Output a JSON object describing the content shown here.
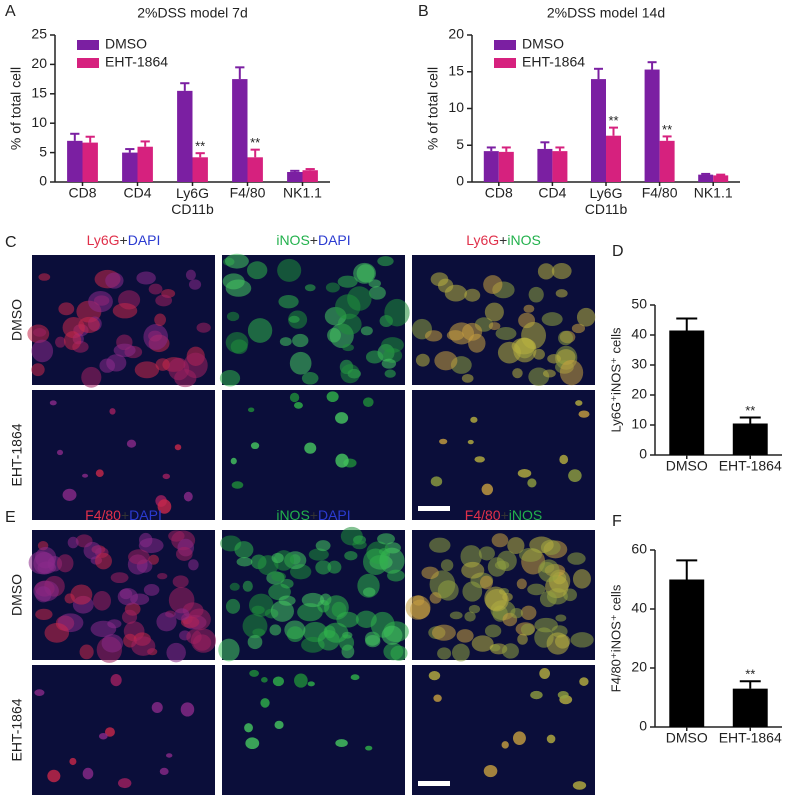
{
  "chart_data": [
    {
      "type": "bar",
      "label": "A",
      "title": "2%DSS model 7d",
      "ylabel": "% of total cell",
      "categories": [
        "CD8",
        "CD4",
        "Ly6G\nCD11b",
        "F4/80",
        "NK1.1"
      ],
      "series": [
        {
          "name": "DMSO",
          "color": "#7b1fa2",
          "values": [
            7,
            5,
            15.5,
            17.5,
            1.7
          ],
          "errors": [
            1.2,
            0.6,
            1.3,
            2,
            0.2
          ],
          "significance": [
            null,
            null,
            null,
            null,
            null
          ]
        },
        {
          "name": "EHT-1864",
          "color": "#d6217e",
          "values": [
            6.7,
            6,
            4.2,
            4.2,
            2
          ],
          "errors": [
            1,
            0.9,
            0.7,
            1.3,
            0.2
          ],
          "significance": [
            null,
            null,
            "**",
            "**",
            null
          ]
        }
      ],
      "ylim": [
        0,
        25
      ],
      "yticks": [
        0,
        5,
        10,
        15,
        20,
        25
      ]
    },
    {
      "type": "bar",
      "label": "B",
      "title": "2%DSS model 14d",
      "ylabel": "% of total cell",
      "categories": [
        "CD8",
        "CD4",
        "Ly6G\nCD11b",
        "F4/80",
        "NK1.1"
      ],
      "series": [
        {
          "name": "DMSO",
          "color": "#7b1fa2",
          "values": [
            4.2,
            4.5,
            14,
            15.3,
            1
          ],
          "errors": [
            0.5,
            0.9,
            1.4,
            1,
            0.1
          ],
          "significance": [
            null,
            null,
            null,
            null,
            null
          ]
        },
        {
          "name": "EHT-1864",
          "color": "#d6217e",
          "values": [
            4.1,
            4.2,
            6.3,
            5.6,
            0.9
          ],
          "errors": [
            0.6,
            0.5,
            1.1,
            0.6,
            0.1
          ],
          "significance": [
            null,
            null,
            "**",
            "**",
            null
          ]
        }
      ],
      "ylim": [
        0,
        20
      ],
      "yticks": [
        0,
        5,
        10,
        15,
        20
      ]
    },
    {
      "type": "bar",
      "label": "D",
      "ylabel": "Ly6G⁺iNOS⁺ cells",
      "categories": [
        "DMSO",
        "EHT-1864"
      ],
      "values": [
        41.5,
        10.5
      ],
      "errors": [
        4,
        2
      ],
      "significance": [
        null,
        "**"
      ],
      "color": "#000000",
      "ylim": [
        0,
        50
      ],
      "yticks": [
        0,
        10,
        20,
        30,
        40,
        50
      ]
    },
    {
      "type": "bar",
      "label": "F",
      "ylabel": "F4/80⁺iNOS⁺ cells",
      "categories": [
        "DMSO",
        "EHT-1864"
      ],
      "values": [
        50,
        13
      ],
      "errors": [
        6.5,
        2.5
      ],
      "significance": [
        null,
        "**"
      ],
      "color": "#000000",
      "ylim": [
        0,
        60
      ],
      "yticks": [
        0,
        20,
        40,
        60
      ]
    }
  ],
  "image_panels": [
    {
      "label": "C",
      "rows": [
        "DMSO",
        "EHT-1864"
      ],
      "columns": [
        [
          {
            "text": "Ly6G",
            "color": "#e0304a"
          },
          {
            "text": "+",
            "color": "#333333"
          },
          {
            "text": "DAPI",
            "color": "#2b3bd0"
          }
        ],
        [
          {
            "text": "iNOS",
            "color": "#22b14c"
          },
          {
            "text": "+",
            "color": "#333333"
          },
          {
            "text": "DAPI",
            "color": "#2b3bd0"
          }
        ],
        [
          {
            "text": "Ly6G",
            "color": "#e0304a"
          },
          {
            "text": "+",
            "color": "#333333"
          },
          {
            "text": "iNOS",
            "color": "#22b14c"
          }
        ]
      ]
    },
    {
      "label": "E",
      "rows": [
        "DMSO",
        "EHT-1864"
      ],
      "columns": [
        [
          {
            "text": "F4/80",
            "color": "#e0304a"
          },
          {
            "text": "+",
            "color": "#333333"
          },
          {
            "text": "DAPI",
            "color": "#2b3bd0"
          }
        ],
        [
          {
            "text": "iNOS",
            "color": "#22b14c"
          },
          {
            "text": "+",
            "color": "#333333"
          },
          {
            "text": "DAPI",
            "color": "#2b3bd0"
          }
        ],
        [
          {
            "text": "F4/80",
            "color": "#e0304a"
          },
          {
            "text": "+",
            "color": "#333333"
          },
          {
            "text": "iNOS",
            "color": "#22b14c"
          }
        ]
      ]
    }
  ]
}
